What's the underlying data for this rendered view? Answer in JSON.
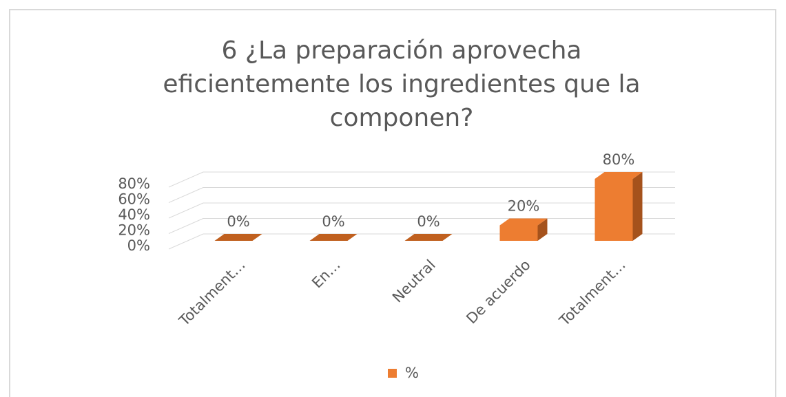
{
  "chart_data": {
    "type": "bar3d",
    "title": "6 ¿La preparación aprovecha eficientemente los ingredientes que la componen?",
    "categories": [
      "Totalment…",
      "En…",
      "Neutral",
      "De acuerdo",
      "Totalment…"
    ],
    "series": [
      {
        "name": "%",
        "color": "#ed7d31",
        "values": [
          0,
          0,
          0,
          20,
          80
        ],
        "value_labels": [
          "0%",
          "0%",
          "0%",
          "20%",
          "80%"
        ]
      }
    ],
    "ylim": [
      0,
      80
    ],
    "yticks": [
      {
        "value": 0,
        "label": "0%"
      },
      {
        "value": 20,
        "label": "20%"
      },
      {
        "value": 40,
        "label": "40%"
      },
      {
        "value": 60,
        "label": "60%"
      },
      {
        "value": 80,
        "label": "80%"
      }
    ],
    "grid": true,
    "legend": "bottom"
  }
}
